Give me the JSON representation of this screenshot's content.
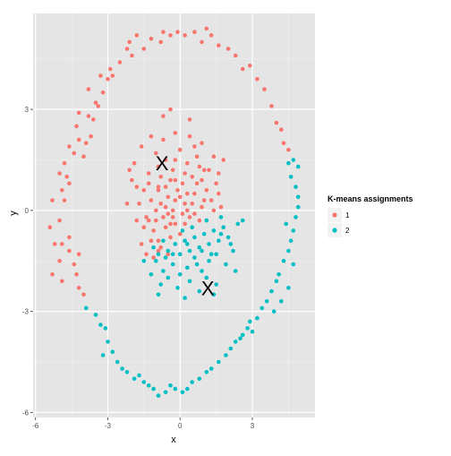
{
  "chart_data": {
    "type": "scatter",
    "title": "",
    "xlabel": "x",
    "ylabel": "y",
    "xlim": [
      -6.1,
      5.6
    ],
    "ylim": [
      -6.15,
      5.85
    ],
    "x_ticks": [
      -6,
      -3,
      0,
      3
    ],
    "y_ticks": [
      -6,
      -3,
      0,
      3
    ],
    "x_tick_labels": [
      "-6",
      "-3",
      "0",
      "3"
    ],
    "y_tick_labels": [
      "-6",
      "-3",
      "0",
      "3"
    ],
    "grid": true,
    "background": "#e5e5e5",
    "legend": {
      "title": "K-means assignments",
      "position": "right",
      "entries": [
        {
          "label": "1",
          "color": "#F8766D"
        },
        {
          "label": "2",
          "color": "#00BFC4"
        }
      ]
    },
    "series": [
      {
        "name": "1",
        "color": "#F8766D",
        "points": [
          [
            -5.3,
            0.3
          ],
          [
            -5.4,
            -0.5
          ],
          [
            -5.2,
            -1.0
          ],
          [
            -5.3,
            -1.9
          ],
          [
            -5.0,
            -1.5
          ],
          [
            -4.9,
            -2.1
          ],
          [
            -5.0,
            -0.3
          ],
          [
            -4.9,
            0.6
          ],
          [
            -4.7,
            1.0
          ],
          [
            -4.9,
            -1.0
          ],
          [
            -4.6,
            -0.8
          ],
          [
            -4.6,
            -1.2
          ],
          [
            -4.4,
            -1.6
          ],
          [
            -4.3,
            -1.9
          ],
          [
            -4.2,
            -2.3
          ],
          [
            -4.0,
            -2.5
          ],
          [
            -4.2,
            -1.3
          ],
          [
            -4.8,
            0.3
          ],
          [
            -4.6,
            0.8
          ],
          [
            -5.0,
            1.1
          ],
          [
            -4.8,
            1.4
          ],
          [
            -4.6,
            1.9
          ],
          [
            -4.4,
            1.7
          ],
          [
            -4.2,
            2.1
          ],
          [
            -4.0,
            1.6
          ],
          [
            -4.3,
            2.5
          ],
          [
            -4.2,
            2.9
          ],
          [
            -3.8,
            2.8
          ],
          [
            -3.5,
            3.2
          ],
          [
            -3.8,
            3.6
          ],
          [
            -3.4,
            3.1
          ],
          [
            -3.2,
            3.5
          ],
          [
            -3.0,
            3.9
          ],
          [
            -3.3,
            4.0
          ],
          [
            -2.9,
            4.2
          ],
          [
            -2.5,
            4.4
          ],
          [
            -2.2,
            4.8
          ],
          [
            -1.8,
            5.2
          ],
          [
            -1.5,
            4.8
          ],
          [
            -1.2,
            5.1
          ],
          [
            -0.8,
            5.0
          ],
          [
            -0.4,
            5.2
          ],
          [
            -0.1,
            5.3
          ],
          [
            0.2,
            5.2
          ],
          [
            0.6,
            5.3
          ],
          [
            0.9,
            5.0
          ],
          [
            1.3,
            5.2
          ],
          [
            1.6,
            4.9
          ],
          [
            2.0,
            4.8
          ],
          [
            2.3,
            4.6
          ],
          [
            2.6,
            4.2
          ],
          [
            2.9,
            4.3
          ],
          [
            3.2,
            3.9
          ],
          [
            3.5,
            3.6
          ],
          [
            3.8,
            3.1
          ],
          [
            4.0,
            2.6
          ],
          [
            4.2,
            2.4
          ],
          [
            4.3,
            2.0
          ],
          [
            4.5,
            1.8
          ],
          [
            -3.9,
            2.0
          ],
          [
            -3.6,
            2.7
          ],
          [
            -3.7,
            2.2
          ],
          [
            -2.8,
            4.0
          ],
          [
            -2.0,
            4.6
          ],
          [
            1.1,
            5.4
          ],
          [
            -0.7,
            5.3
          ],
          [
            -2.1,
            5.0
          ],
          [
            -1.2,
            0.3
          ],
          [
            -0.9,
            0.6
          ],
          [
            -0.7,
            -0.2
          ],
          [
            -0.5,
            0.4
          ],
          [
            -0.3,
            0.0
          ],
          [
            -0.1,
            0.6
          ],
          [
            0.1,
            -0.1
          ],
          [
            0.3,
            0.5
          ],
          [
            0.5,
            0.2
          ],
          [
            0.7,
            0.8
          ],
          [
            0.9,
            0.1
          ],
          [
            1.1,
            0.6
          ],
          [
            -0.8,
            1.0
          ],
          [
            -0.6,
            1.5
          ],
          [
            -0.3,
            1.2
          ],
          [
            0.0,
            1.8
          ],
          [
            0.3,
            1.4
          ],
          [
            0.6,
            1.9
          ],
          [
            0.8,
            1.3
          ],
          [
            -1.0,
            1.7
          ],
          [
            -1.3,
            1.1
          ],
          [
            -1.5,
            0.6
          ],
          [
            -1.7,
            0.2
          ],
          [
            -1.4,
            -0.2
          ],
          [
            -1.1,
            -0.6
          ],
          [
            -0.9,
            -0.9
          ],
          [
            -0.6,
            -0.5
          ],
          [
            -0.4,
            -0.8
          ],
          [
            -0.2,
            -0.4
          ],
          [
            0.0,
            -0.7
          ],
          [
            -0.8,
            0.2
          ],
          [
            -0.5,
            -0.1
          ],
          [
            -0.2,
            0.3
          ],
          [
            0.2,
            0.2
          ],
          [
            0.4,
            -0.2
          ],
          [
            0.6,
            0.5
          ],
          [
            1.3,
            0.3
          ],
          [
            1.5,
            0.8
          ],
          [
            1.2,
            1.2
          ],
          [
            -1.9,
            1.4
          ],
          [
            -1.6,
            1.9
          ],
          [
            -1.2,
            2.2
          ],
          [
            -0.7,
            2.1
          ],
          [
            -0.2,
            2.3
          ],
          [
            0.4,
            2.2
          ],
          [
            0.9,
            2.0
          ],
          [
            1.4,
            1.6
          ],
          [
            1.6,
            1.1
          ],
          [
            -2.0,
            0.9
          ],
          [
            -0.9,
            -1.2
          ],
          [
            -1.2,
            -0.9
          ],
          [
            -1.5,
            -0.5
          ],
          [
            0.1,
            0.8
          ],
          [
            -0.4,
            0.9
          ],
          [
            0.5,
            1.0
          ],
          [
            -1.0,
            0.0
          ],
          [
            -0.3,
            -0.2
          ],
          [
            0.2,
            -0.4
          ],
          [
            0.8,
            -0.3
          ],
          [
            1.0,
            0.3
          ],
          [
            -1.3,
            -0.3
          ],
          [
            -0.6,
            0.7
          ],
          [
            -0.9,
            1.3
          ],
          [
            0.2,
            1.1
          ],
          [
            -0.7,
            2.8
          ],
          [
            0.4,
            2.7
          ],
          [
            -1.8,
            -0.3
          ],
          [
            -2.2,
            0.2
          ],
          [
            1.8,
            1.5
          ],
          [
            -0.5,
            -1.3
          ],
          [
            -1.1,
            -1.4
          ],
          [
            -0.8,
            -1.1
          ],
          [
            -1.3,
            0.8
          ],
          [
            0.0,
            0.4
          ],
          [
            -0.2,
            1.5
          ],
          [
            0.7,
            1.6
          ],
          [
            1.4,
            0.0
          ],
          [
            -2.1,
            1.2
          ],
          [
            -1.8,
            0.7
          ],
          [
            -0.4,
            3.0
          ],
          [
            -1.4,
            -1.3
          ],
          [
            1.0,
            1.2
          ],
          [
            1.6,
            0.5
          ],
          [
            1.7,
            0.1
          ],
          [
            -1.6,
            -1.0
          ],
          [
            -0.9,
            0.7
          ],
          [
            -0.2,
            0.9
          ],
          [
            0.3,
            0.0
          ],
          [
            0.9,
            0.9
          ],
          [
            -1.0,
            -0.3
          ],
          [
            -0.6,
            0.1
          ],
          [
            -0.4,
            -0.4
          ],
          [
            0.6,
            -0.1
          ]
        ]
      },
      {
        "name": "2",
        "color": "#00BFC4",
        "points": [
          [
            -3.9,
            -2.9
          ],
          [
            -3.5,
            -3.1
          ],
          [
            -3.3,
            -3.4
          ],
          [
            -3.1,
            -3.5
          ],
          [
            -3.0,
            -3.9
          ],
          [
            -2.8,
            -4.2
          ],
          [
            -3.2,
            -4.3
          ],
          [
            -2.6,
            -4.5
          ],
          [
            -2.4,
            -4.7
          ],
          [
            -2.2,
            -4.8
          ],
          [
            -1.9,
            -5.0
          ],
          [
            -1.7,
            -4.9
          ],
          [
            -1.5,
            -5.1
          ],
          [
            -1.3,
            -5.2
          ],
          [
            -1.1,
            -5.3
          ],
          [
            -0.9,
            -5.5
          ],
          [
            -0.6,
            -5.4
          ],
          [
            -0.4,
            -5.2
          ],
          [
            -0.2,
            -5.3
          ],
          [
            0.1,
            -5.4
          ],
          [
            0.3,
            -5.3
          ],
          [
            0.5,
            -5.1
          ],
          [
            0.8,
            -5.0
          ],
          [
            1.1,
            -4.8
          ],
          [
            1.3,
            -4.7
          ],
          [
            1.6,
            -4.5
          ],
          [
            1.9,
            -4.3
          ],
          [
            2.1,
            -4.1
          ],
          [
            2.3,
            -3.9
          ],
          [
            2.6,
            -3.7
          ],
          [
            2.8,
            -3.5
          ],
          [
            3.0,
            -3.6
          ],
          [
            3.2,
            -3.2
          ],
          [
            3.4,
            -2.9
          ],
          [
            3.6,
            -2.7
          ],
          [
            3.8,
            -2.4
          ],
          [
            4.0,
            -2.1
          ],
          [
            4.1,
            -1.9
          ],
          [
            4.3,
            -1.5
          ],
          [
            4.5,
            -1.2
          ],
          [
            4.6,
            -0.9
          ],
          [
            4.7,
            -0.6
          ],
          [
            4.8,
            -0.2
          ],
          [
            4.9,
            0.1
          ],
          [
            4.9,
            0.4
          ],
          [
            4.8,
            0.7
          ],
          [
            4.6,
            1.0
          ],
          [
            4.5,
            1.4
          ],
          [
            4.4,
            -0.4
          ],
          [
            4.7,
            -1.6
          ],
          [
            4.5,
            -2.3
          ],
          [
            4.2,
            -2.7
          ],
          [
            3.9,
            -3.0
          ],
          [
            4.9,
            1.3
          ],
          [
            4.7,
            1.5
          ],
          [
            2.9,
            -3.3
          ],
          [
            2.5,
            -3.8
          ],
          [
            -0.7,
            -0.9
          ],
          [
            -0.5,
            -1.2
          ],
          [
            -0.2,
            -1.0
          ],
          [
            0.0,
            -1.3
          ],
          [
            0.2,
            -0.9
          ],
          [
            0.4,
            -1.2
          ],
          [
            0.6,
            -0.8
          ],
          [
            0.8,
            -1.1
          ],
          [
            1.0,
            -0.7
          ],
          [
            1.2,
            -1.0
          ],
          [
            1.4,
            -0.6
          ],
          [
            1.6,
            -0.9
          ],
          [
            1.8,
            -0.5
          ],
          [
            2.0,
            -0.8
          ],
          [
            -1.0,
            -1.5
          ],
          [
            -0.7,
            -1.8
          ],
          [
            -0.3,
            -1.6
          ],
          [
            0.0,
            -1.9
          ],
          [
            0.3,
            -1.7
          ],
          [
            0.6,
            -1.4
          ],
          [
            0.9,
            -1.8
          ],
          [
            1.2,
            -1.5
          ],
          [
            1.5,
            -1.3
          ],
          [
            -1.2,
            -1.9
          ],
          [
            -0.8,
            -2.2
          ],
          [
            -0.5,
            -2.0
          ],
          [
            -0.1,
            -2.3
          ],
          [
            0.4,
            -2.1
          ],
          [
            0.8,
            -2.4
          ],
          [
            1.1,
            -2.0
          ],
          [
            1.5,
            -2.2
          ],
          [
            1.9,
            -1.6
          ],
          [
            2.2,
            -1.2
          ],
          [
            2.4,
            -0.4
          ],
          [
            2.6,
            -0.3
          ],
          [
            0.5,
            -0.5
          ],
          [
            1.1,
            -0.3
          ],
          [
            1.7,
            -0.2
          ],
          [
            -0.6,
            -1.4
          ],
          [
            0.1,
            -0.6
          ],
          [
            0.7,
            -1.6
          ],
          [
            1.3,
            -1.3
          ],
          [
            2.1,
            -1.0
          ],
          [
            -1.5,
            -1.5
          ],
          [
            -0.9,
            -2.5
          ],
          [
            0.2,
            -2.6
          ],
          [
            1.4,
            -2.5
          ],
          [
            2.3,
            -1.8
          ],
          [
            0.3,
            -1.0
          ],
          [
            0.9,
            -1.2
          ],
          [
            -0.3,
            -1.3
          ],
          [
            1.7,
            -0.7
          ],
          [
            -0.9,
            -1.3
          ],
          [
            -1.1,
            -1.1
          ]
        ]
      }
    ],
    "centroids": [
      {
        "label": "X",
        "x": -0.75,
        "y": 1.4
      },
      {
        "label": "X",
        "x": 1.15,
        "y": -2.3
      }
    ]
  }
}
